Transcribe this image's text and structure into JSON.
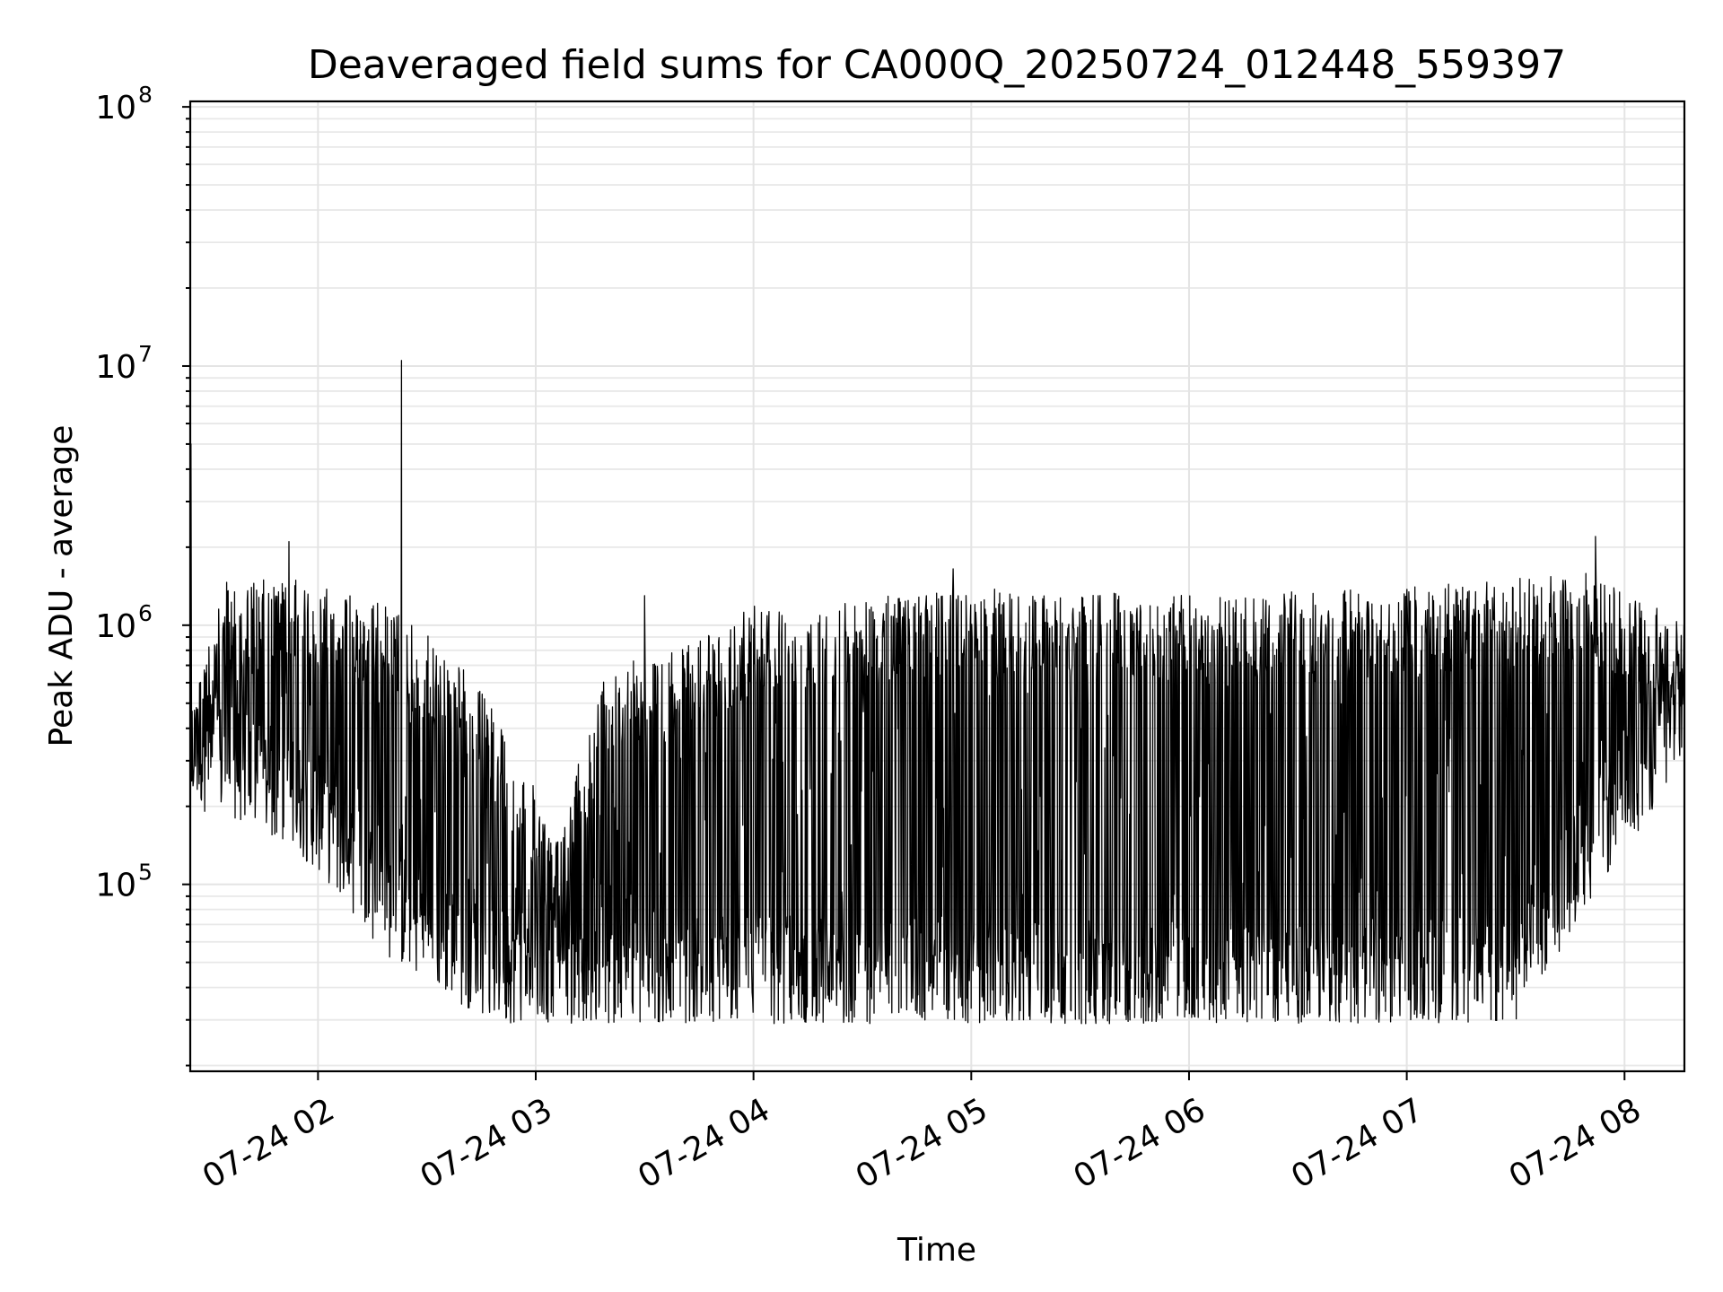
{
  "chart_data": {
    "type": "line",
    "title": "Deaveraged field sums for CA000Q_20250724_012448_559397",
    "xlabel": "Time",
    "ylabel": "Peak ADU - average",
    "x_type": "time",
    "xlim": [
      "2025-07-24 01:24:48",
      "2025-07-24 08:16:30"
    ],
    "x_ticks": [
      {
        "value": "2025-07-24 02:00",
        "label": "07-24 02"
      },
      {
        "value": "2025-07-24 03:00",
        "label": "07-24 03"
      },
      {
        "value": "2025-07-24 04:00",
        "label": "07-24 04"
      },
      {
        "value": "2025-07-24 05:00",
        "label": "07-24 05"
      },
      {
        "value": "2025-07-24 06:00",
        "label": "07-24 06"
      },
      {
        "value": "2025-07-24 07:00",
        "label": "07-24 07"
      },
      {
        "value": "2025-07-24 08:00",
        "label": "07-24 08"
      }
    ],
    "y_scale": "log",
    "ylim": [
      19000,
      105000000
    ],
    "y_ticks": [
      {
        "value": 100000,
        "base": "10",
        "exp": "5"
      },
      {
        "value": 1000000,
        "base": "10",
        "exp": "6"
      },
      {
        "value": 10000000,
        "base": "10",
        "exp": "7"
      },
      {
        "value": 100000000,
        "base": "10",
        "exp": "8"
      }
    ],
    "grid": true,
    "grid_minor_y": true,
    "line_color": "#000000",
    "series": [
      {
        "envelope_upper": [
          {
            "t": "2025-07-24 01:25:00",
            "v": 500000
          },
          {
            "t": "2025-07-24 01:35:00",
            "v": 1500000
          },
          {
            "t": "2025-07-24 01:55:00",
            "v": 1500000
          },
          {
            "t": "2025-07-24 02:20:00",
            "v": 1200000
          },
          {
            "t": "2025-07-24 02:40:00",
            "v": 700000
          },
          {
            "t": "2025-07-24 02:55:00",
            "v": 350000
          },
          {
            "t": "2025-07-24 03:05:00",
            "v": 150000
          },
          {
            "t": "2025-07-24 03:20:00",
            "v": 700000
          },
          {
            "t": "2025-07-24 03:40:00",
            "v": 800000
          },
          {
            "t": "2025-07-24 04:00:00",
            "v": 1200000
          },
          {
            "t": "2025-07-24 05:00:00",
            "v": 1400000
          },
          {
            "t": "2025-07-24 06:00:00",
            "v": 1300000
          },
          {
            "t": "2025-07-24 07:00:00",
            "v": 1400000
          },
          {
            "t": "2025-07-24 07:50:00",
            "v": 1600000
          },
          {
            "t": "2025-07-24 08:16:00",
            "v": 1100000
          }
        ],
        "baseline": [
          {
            "t": "2025-07-24 01:25:00",
            "v": 350000
          },
          {
            "t": "2025-07-24 01:40:00",
            "v": 300000
          },
          {
            "t": "2025-07-24 02:00:00",
            "v": 200000
          },
          {
            "t": "2025-07-24 02:20:00",
            "v": 90000
          },
          {
            "t": "2025-07-24 02:40:00",
            "v": 60000
          },
          {
            "t": "2025-07-24 03:00:00",
            "v": 45000
          },
          {
            "t": "2025-07-24 04:00:00",
            "v": 50000
          },
          {
            "t": "2025-07-24 05:00:00",
            "v": 47000
          },
          {
            "t": "2025-07-24 06:00:00",
            "v": 45000
          },
          {
            "t": "2025-07-24 07:00:00",
            "v": 47000
          },
          {
            "t": "2025-07-24 07:30:00",
            "v": 50000
          },
          {
            "t": "2025-07-24 07:50:00",
            "v": 150000
          },
          {
            "t": "2025-07-24 08:05:00",
            "v": 300000
          },
          {
            "t": "2025-07-24 08:16:00",
            "v": 500000
          }
        ],
        "peaks": [
          {
            "t": "2025-07-24 01:25:00",
            "v": 5000000
          },
          {
            "t": "2025-07-24 01:52:00",
            "v": 2100000
          },
          {
            "t": "2025-07-24 02:23:00",
            "v": 10500000
          },
          {
            "t": "2025-07-24 03:30:00",
            "v": 1300000
          },
          {
            "t": "2025-07-24 04:55:00",
            "v": 1650000
          },
          {
            "t": "2025-07-24 07:52:00",
            "v": 2200000
          }
        ],
        "min_value": 29000
      }
    ]
  }
}
